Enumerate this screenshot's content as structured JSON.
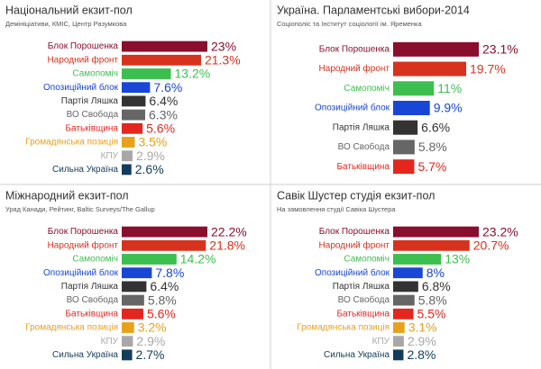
{
  "chart_data": [
    {
      "type": "bar",
      "title": "Національний екзит-пол",
      "subtitle": "Демініціативи, КМІС, Центр Разумкова",
      "categories": [
        "Блок Порошенка",
        "Народний фронт",
        "Самопоміч",
        "Опозиційний блок",
        "Партія Ляшка",
        "ВО Свобода",
        "Батьківщина",
        "Громадянська позиція",
        "КПУ",
        "Сильна Україна"
      ],
      "values": [
        23,
        21.3,
        13.2,
        7.6,
        6.4,
        6.3,
        5.6,
        3.5,
        2.9,
        2.6
      ],
      "value_labels": [
        "23%",
        "21.3%",
        "13.2%",
        "7.6%",
        "6.4%",
        "6.3%",
        "5.6%",
        "3.5%",
        "2.9%",
        "2.6%"
      ],
      "colors": [
        "#8a0e2e",
        "#d7321e",
        "#3cbf4e",
        "#1846d6",
        "#333333",
        "#666666",
        "#e4261f",
        "#e8a11b",
        "#a8a8a8",
        "#123c5a"
      ]
    },
    {
      "type": "bar",
      "title": "Україна. Парламентські вибори-2014",
      "subtitle": "Соціополіс та Інститут соціології ім. Яременка",
      "categories": [
        "Блок Порошенка",
        "Народний фронт",
        "Самопоміч",
        "Опозиційний блок",
        "Партія Ляшка",
        "ВО Свобода",
        "Батьківщина"
      ],
      "values": [
        23.1,
        19.7,
        11,
        9.9,
        6.6,
        5.8,
        5.7
      ],
      "value_labels": [
        "23.1%",
        "19.7%",
        "11%",
        "9.9%",
        "6.6%",
        "5.8%",
        "5.7%"
      ],
      "colors": [
        "#8a0e2e",
        "#d7321e",
        "#3cbf4e",
        "#1846d6",
        "#333333",
        "#666666",
        "#e4261f"
      ]
    },
    {
      "type": "bar",
      "title": "Міжнародний екзит-пол",
      "subtitle": "Уряд Канади, Рейтинг, Baltic Surveys/The Gallup",
      "categories": [
        "Блок Порошенка",
        "Народний фронт",
        "Самопоміч",
        "Опозиційний блок",
        "Партія Ляшка",
        "ВО Свобода",
        "Батьківщина",
        "Громадянська позиція",
        "КПУ",
        "Сильна Україна"
      ],
      "values": [
        22.2,
        21.8,
        14.2,
        7.8,
        6.4,
        5.8,
        5.6,
        3.2,
        2.9,
        2.7
      ],
      "value_labels": [
        "22.2%",
        "21.8%",
        "14.2%",
        "7.8%",
        "6.4%",
        "5.8%",
        "5.6%",
        "3.2%",
        "2.9%",
        "2.7%"
      ],
      "colors": [
        "#8a0e2e",
        "#d7321e",
        "#3cbf4e",
        "#1846d6",
        "#333333",
        "#666666",
        "#e4261f",
        "#e8a11b",
        "#a8a8a8",
        "#123c5a"
      ]
    },
    {
      "type": "bar",
      "title": "Савік Шустер студія екзит-пол",
      "subtitle": "На замовлення студії Савіка Шустера",
      "categories": [
        "Блок Порошенка",
        "Народний фронт",
        "Самопоміч",
        "Опозиційний блок",
        "Партія Ляшка",
        "ВО Свобода",
        "Батьківщина",
        "Громадянська позиція",
        "КПУ",
        "Сильна Україна"
      ],
      "values": [
        23.2,
        20.7,
        13,
        8,
        6.8,
        5.8,
        5.5,
        3.1,
        2.9,
        2.8
      ],
      "value_labels": [
        "23.2%",
        "20.7%",
        "13%",
        "8%",
        "6.8%",
        "5.8%",
        "5.5%",
        "3.1%",
        "2.9%",
        "2.8%"
      ],
      "colors": [
        "#8a0e2e",
        "#d7321e",
        "#3cbf4e",
        "#1846d6",
        "#333333",
        "#666666",
        "#e4261f",
        "#e8a11b",
        "#a8a8a8",
        "#123c5a"
      ]
    }
  ]
}
